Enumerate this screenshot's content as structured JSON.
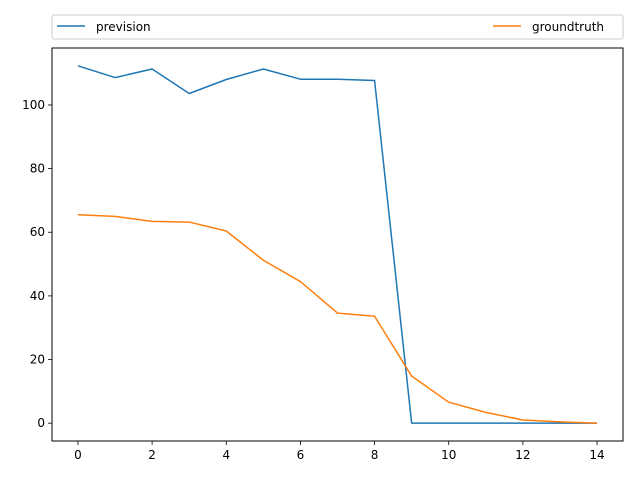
{
  "chart_data": {
    "type": "line",
    "x": [
      0,
      1,
      2,
      3,
      4,
      5,
      6,
      7,
      8,
      9,
      10,
      11,
      12,
      13,
      14
    ],
    "series": [
      {
        "name": "prevision",
        "color": "#1f77b4",
        "values": [
          112.3,
          108.6,
          111.3,
          103.6,
          108.0,
          111.3,
          108.1,
          108.1,
          107.7,
          0.0,
          0.0,
          0.0,
          0.0,
          0.0,
          0.0
        ]
      },
      {
        "name": "groundtruth",
        "color": "#ff7f0e",
        "values": [
          65.5,
          65.0,
          63.4,
          63.2,
          60.4,
          51.2,
          44.5,
          34.6,
          33.6,
          14.8,
          6.6,
          3.4,
          1.0,
          0.4,
          0.0
        ]
      }
    ],
    "xlim": [
      -0.7,
      14.7
    ],
    "ylim": [
      -5.6,
      117.9
    ],
    "xticks": [
      0,
      2,
      4,
      6,
      8,
      10,
      12,
      14
    ],
    "yticks": [
      0,
      20,
      40,
      60,
      80,
      100
    ],
    "grid": false,
    "legend_position": "top, above plot, expanded across width",
    "title": "",
    "xlabel": "",
    "ylabel": ""
  }
}
